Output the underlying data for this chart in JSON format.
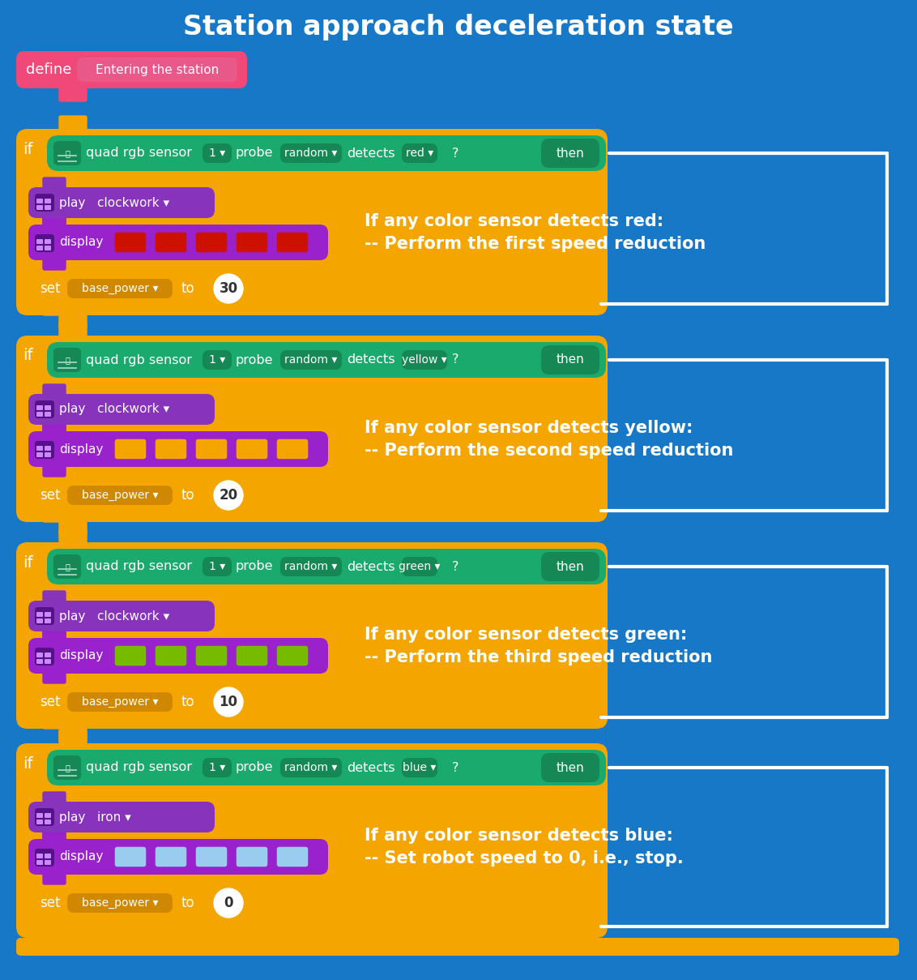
{
  "title": "Station approach deceleration state",
  "bg_color": "#1878c8",
  "title_color": "#ffffff",
  "title_fontsize": 24,
  "blocks": [
    {
      "color_detect": "red",
      "display_color": "#cc1100",
      "set_value": "30",
      "comment_line1": "If any color sensor detects red:",
      "comment_line2": "-- Perform the first speed reduction",
      "play_label": "clockwork ▾"
    },
    {
      "color_detect": "yellow",
      "display_color": "#f5a500",
      "set_value": "20",
      "comment_line1": "If any color sensor detects yellow:",
      "comment_line2": "-- Perform the second speed reduction",
      "play_label": "clockwork ▾"
    },
    {
      "color_detect": "green",
      "display_color": "#77bb00",
      "set_value": "10",
      "comment_line1": "If any color sensor detects green:",
      "comment_line2": "-- Perform the third speed reduction",
      "play_label": "clockwork ▾"
    },
    {
      "color_detect": "blue",
      "display_color": "#99ccee",
      "set_value": "0",
      "comment_line1": "If any color sensor detects blue:",
      "comment_line2": "-- Set robot speed to 0, i.e., stop.",
      "play_label": "iron ▾"
    }
  ],
  "orange": "#f5a500",
  "green_cond": "#1aaa6e",
  "purple_play": "#8833bb",
  "purple_display": "#9922cc",
  "pink_define": "#f04878",
  "white": "#ffffff",
  "dark_pill": "#158855",
  "bracket_color": "#ffffff"
}
